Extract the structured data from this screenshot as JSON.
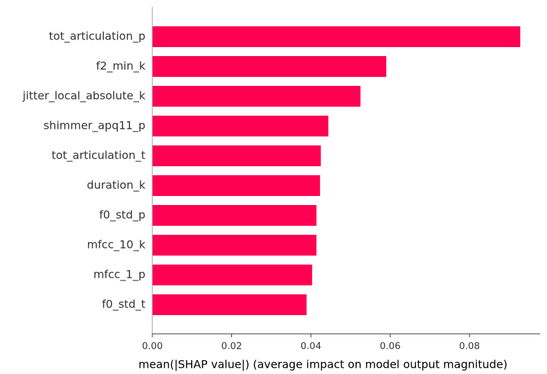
{
  "chart_data": {
    "type": "bar",
    "orientation": "horizontal",
    "categories": [
      "tot_articulation_p",
      "f2_min_k",
      "jitter_local_absolute_k",
      "shimmer_apq11_p",
      "tot_articulation_t",
      "duration_k",
      "f0_std_p",
      "mfcc_10_k",
      "mfcc_1_p",
      "f0_std_t"
    ],
    "values": [
      0.0928,
      0.059,
      0.0525,
      0.0444,
      0.0425,
      0.0423,
      0.0414,
      0.0414,
      0.0403,
      0.0389
    ],
    "xlabel": "mean(|SHAP value|) (average impact on model output magnitude)",
    "ylabel": "",
    "title": "",
    "xlim": [
      0,
      0.0978
    ],
    "xticks": [
      0.0,
      0.02,
      0.04,
      0.06,
      0.08
    ],
    "xtick_labels": [
      "0.00",
      "0.02",
      "0.04",
      "0.06",
      "0.08"
    ],
    "grid": false,
    "bar_color": "#ff0052"
  }
}
